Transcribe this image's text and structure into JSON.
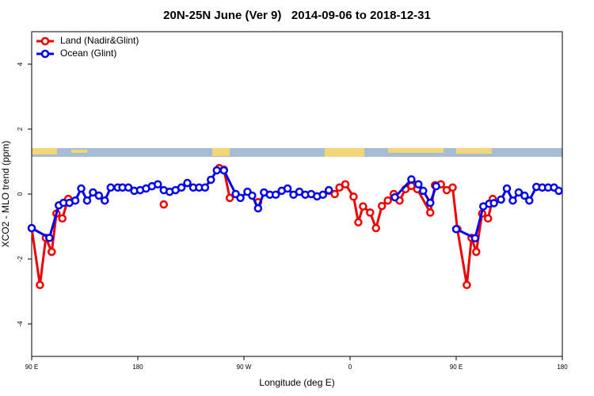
{
  "chart_data": {
    "type": "line",
    "title": "20N-25N June (Ver 9)   2014-09-06 to 2018-12-31",
    "x_label": "Longitude (deg E)",
    "y_label": "XCO2 - MLO trend (ppm)",
    "xlim": [
      90,
      540
    ],
    "xticks": [
      {
        "value": 90,
        "label": "90 E"
      },
      {
        "value": 180,
        "label": "180"
      },
      {
        "value": 270,
        "label": "90 W"
      },
      {
        "value": 360,
        "label": "0"
      },
      {
        "value": 450,
        "label": "90 E"
      },
      {
        "value": 540,
        "label": "180"
      }
    ],
    "ylim": [
      -5,
      5
    ],
    "yticks": [
      -4,
      -2,
      0,
      2,
      4
    ],
    "legend": "topleft",
    "series": [
      {
        "name": "Land (Nadir&Glint)",
        "color": "#ee0000",
        "x": [
          90,
          97,
          102,
          107,
          111,
          116,
          121,
          160,
          202,
          230,
          249,
          253,
          258,
          270,
          282,
          320,
          342,
          347,
          351,
          356,
          363,
          367,
          371,
          377,
          382,
          387,
          392,
          397,
          402,
          407,
          412,
          417,
          428,
          432,
          437,
          442,
          447,
          451,
          459,
          463,
          467,
          472,
          477,
          481
        ],
        "values": [
          -1.05,
          -2.8,
          -1.35,
          -1.78,
          -0.6,
          -0.75,
          -0.15,
          null,
          -0.32,
          null,
          0.8,
          0.75,
          -0.12,
          null,
          -0.25,
          null,
          0.1,
          0,
          0.2,
          0.3,
          -0.08,
          -0.87,
          -0.38,
          -0.57,
          -1.05,
          -0.37,
          -0.2,
          0,
          -0.2,
          0.15,
          0.25,
          0.15,
          -0.57,
          0.27,
          0.3,
          0.12,
          0.2,
          -1.08,
          -2.8,
          -1.35,
          -1.78,
          -0.6,
          -0.75,
          -0.15
        ]
      },
      {
        "name": "Ocean (Glint)",
        "color": "#0000ee",
        "x": [
          90,
          105,
          113,
          117,
          122,
          127,
          132,
          137,
          142,
          147,
          152,
          157,
          163,
          167,
          172,
          177,
          182,
          187,
          192,
          197,
          202,
          207,
          212,
          217,
          222,
          227,
          232,
          237,
          242,
          247,
          253,
          263,
          267,
          273,
          277,
          282,
          287,
          292,
          297,
          302,
          307,
          312,
          317,
          322,
          327,
          332,
          337,
          342,
          370,
          398,
          412,
          418,
          422,
          428,
          433,
          440,
          450,
          466,
          473,
          478,
          482,
          488,
          493,
          498,
          503,
          508,
          512,
          518,
          523,
          528,
          533,
          537
        ],
        "values": [
          -1.05,
          -1.35,
          -0.35,
          -0.27,
          -0.27,
          -0.2,
          0.17,
          -0.2,
          0.05,
          -0.05,
          -0.2,
          0.2,
          0.2,
          0.2,
          0.2,
          0.1,
          0.12,
          0.17,
          0.24,
          0.3,
          0.12,
          0.07,
          0.12,
          0.2,
          0.34,
          0.2,
          0.2,
          0.2,
          0.44,
          0.73,
          0.73,
          0,
          -0.12,
          0.07,
          -0.05,
          -0.44,
          0.05,
          -0.02,
          -0.02,
          0.1,
          0.17,
          -0.02,
          0.07,
          -0.02,
          0,
          -0.07,
          -0.02,
          0.12,
          null,
          -0.1,
          0.45,
          0.3,
          0.1,
          -0.27,
          0.24,
          null,
          -1.08,
          -1.36,
          -0.38,
          -0.3,
          -0.28,
          -0.17,
          0.17,
          -0.2,
          0.05,
          -0.05,
          -0.2,
          0.22,
          0.2,
          0.2,
          0.2,
          0.1
        ]
      }
    ]
  }
}
